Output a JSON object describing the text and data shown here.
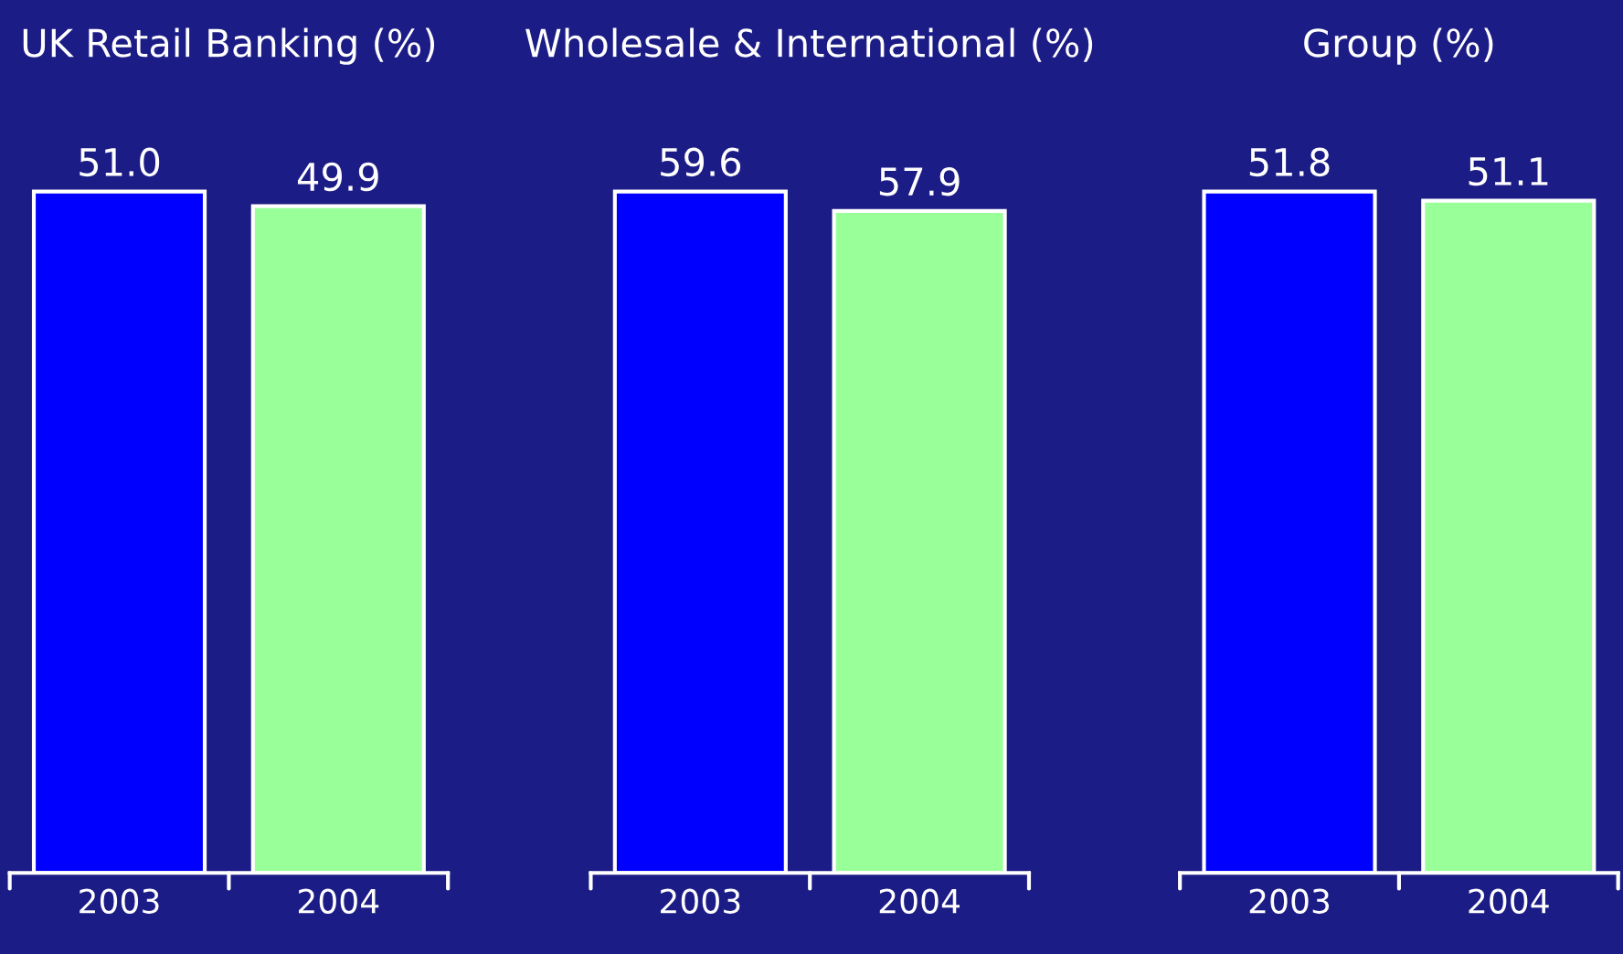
{
  "chart_data": [
    {
      "type": "bar",
      "title": "UK Retail Banking (%)",
      "categories": [
        "2003",
        "2004"
      ],
      "values": [
        51.0,
        49.9
      ],
      "value_labels": [
        "51.0",
        "49.9"
      ],
      "colors": [
        "#0000ff",
        "#99ff99"
      ],
      "tick_labels": "x"
    },
    {
      "type": "bar",
      "title": "Wholesale & International (%)",
      "categories": [
        "2003",
        "2004"
      ],
      "values": [
        59.6,
        57.9
      ],
      "value_labels": [
        "59.6",
        "57.9"
      ],
      "colors": [
        "#0000ff",
        "#99ff99"
      ],
      "tick_labels": "x"
    },
    {
      "type": "bar",
      "title": "Group (%)",
      "categories": [
        "2003",
        "2004"
      ],
      "values": [
        51.8,
        51.1
      ],
      "value_labels": [
        "51.8",
        "51.1"
      ],
      "colors": [
        "#0000ff",
        "#99ff99"
      ],
      "tick_labels": "x"
    }
  ]
}
